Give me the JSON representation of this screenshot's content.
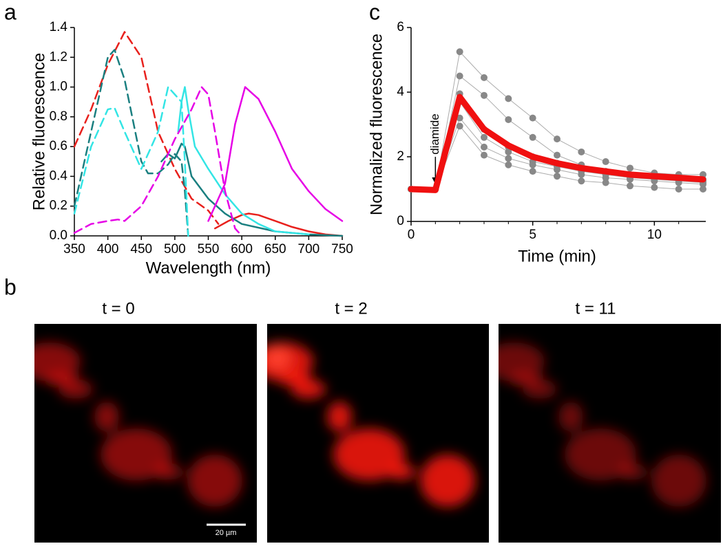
{
  "panels": [
    "a",
    "b",
    "c"
  ],
  "chart_data": [
    {
      "type": "line",
      "xlabel": "Wavelength (nm)",
      "ylabel": "Relative fluorescence",
      "xlim": [
        350,
        750
      ],
      "ylim": [
        0,
        1.4
      ],
      "xticks": [
        350,
        400,
        450,
        500,
        550,
        600,
        650,
        700,
        750
      ],
      "yticks": [
        {
          "value": 0,
          "label": "0.0"
        },
        0.2,
        0.4,
        0.6,
        0.8,
        {
          "value": 1,
          "label": "1.0"
        },
        1.2,
        1.4
      ],
      "series": [
        {
          "color": "#e8201c",
          "dashed": true,
          "x": [
            350,
            375,
            400,
            425,
            450,
            475,
            500,
            525,
            550,
            565
          ],
          "values": [
            0.6,
            0.85,
            1.15,
            1.37,
            1.2,
            0.7,
            0.45,
            0.25,
            0.17,
            0.08
          ]
        },
        {
          "color": "#e8201c",
          "dashed": false,
          "x": [
            560,
            580,
            600,
            610,
            625,
            650,
            675,
            700,
            725,
            750
          ],
          "values": [
            0.05,
            0.1,
            0.14,
            0.15,
            0.14,
            0.1,
            0.06,
            0.03,
            0.01,
            0
          ]
        },
        {
          "color": "#1a7f80",
          "dashed": true,
          "x": [
            350,
            375,
            400,
            410,
            425,
            450,
            460,
            475,
            490,
            500,
            510,
            515,
            520
          ],
          "values": [
            0.2,
            0.7,
            1.2,
            1.25,
            1.05,
            0.5,
            0.42,
            0.42,
            0.48,
            0.55,
            0.5,
            0.3,
            0
          ]
        },
        {
          "color": "#1a7f80",
          "dashed": false,
          "x": [
            480,
            490,
            500,
            510,
            515,
            525,
            550,
            575,
            600,
            650,
            700,
            750
          ],
          "values": [
            0.5,
            0.55,
            0.52,
            0.62,
            0.6,
            0.4,
            0.25,
            0.15,
            0.08,
            0.03,
            0.01,
            0
          ]
        },
        {
          "color": "#33e5e5",
          "dashed": true,
          "x": [
            350,
            375,
            400,
            410,
            425,
            450,
            475,
            490,
            500,
            510,
            515,
            520
          ],
          "values": [
            0.15,
            0.6,
            0.85,
            0.86,
            0.7,
            0.45,
            0.7,
            1.0,
            0.95,
            0.9,
            0.5,
            0
          ]
        },
        {
          "color": "#33e5e5",
          "dashed": false,
          "x": [
            505,
            510,
            515,
            520,
            530,
            550,
            575,
            600,
            625,
            650,
            700
          ],
          "values": [
            0.7,
            0.9,
            1.0,
            0.85,
            0.6,
            0.45,
            0.28,
            0.15,
            0.08,
            0.03,
            0.01
          ]
        },
        {
          "color": "#e600e6",
          "dashed": true,
          "x": [
            350,
            375,
            400,
            415,
            425,
            450,
            475,
            500,
            525,
            540,
            550,
            560,
            575,
            590,
            600
          ],
          "values": [
            0.02,
            0.08,
            0.1,
            0.11,
            0.1,
            0.2,
            0.4,
            0.65,
            0.85,
            1.0,
            0.95,
            0.7,
            0.3,
            0.05,
            0
          ]
        },
        {
          "color": "#e600e6",
          "dashed": false,
          "x": [
            550,
            575,
            590,
            605,
            625,
            650,
            675,
            700,
            725,
            750
          ],
          "values": [
            0.1,
            0.35,
            0.75,
            1.0,
            0.92,
            0.7,
            0.45,
            0.3,
            0.18,
            0.1
          ]
        }
      ]
    },
    {
      "type": "line",
      "xlabel": "Time (min)",
      "ylabel": "Normalized fluorescence",
      "annotation": "diamide",
      "xlim": [
        0,
        12
      ],
      "ylim": [
        0,
        6
      ],
      "xticks": [
        0,
        5,
        10
      ],
      "yticks": [
        0,
        2,
        4,
        6
      ],
      "x": [
        0,
        1,
        2,
        3,
        4,
        5,
        6,
        7,
        8,
        9,
        10,
        11,
        12
      ],
      "series": [
        {
          "color": "#888888",
          "markers": true,
          "values": [
            1,
            1,
            5.25,
            4.45,
            3.8,
            3.2,
            2.55,
            2.15,
            1.85,
            1.65,
            1.5,
            1.45,
            1.45
          ]
        },
        {
          "color": "#888888",
          "markers": true,
          "values": [
            1,
            1,
            4.5,
            3.9,
            3.15,
            2.6,
            2.05,
            1.75,
            1.55,
            1.45,
            1.35,
            1.3,
            1.3
          ]
        },
        {
          "color": "#888888",
          "markers": true,
          "values": [
            1,
            1,
            3.95,
            2.85,
            2.3,
            2.0,
            1.8,
            1.6,
            1.5,
            1.4,
            1.35,
            1.3,
            1.25
          ]
        },
        {
          "color": "#888888",
          "markers": true,
          "values": [
            1,
            1,
            3.7,
            2.6,
            2.15,
            1.85,
            1.7,
            1.55,
            1.45,
            1.35,
            1.3,
            1.25,
            1.2
          ]
        },
        {
          "color": "#888888",
          "markers": true,
          "values": [
            1,
            1,
            3.2,
            2.3,
            1.95,
            1.75,
            1.6,
            1.45,
            1.35,
            1.3,
            1.25,
            1.2,
            1.15
          ]
        },
        {
          "color": "#888888",
          "markers": true,
          "values": [
            1,
            1,
            2.95,
            2.05,
            1.75,
            1.55,
            1.4,
            1.25,
            1.2,
            1.1,
            1.05,
            1.0,
            1.0
          ]
        },
        {
          "color": "#f01010",
          "markers": false,
          "thick": true,
          "values": [
            1,
            0.97,
            3.85,
            2.85,
            2.35,
            2.0,
            1.8,
            1.65,
            1.55,
            1.45,
            1.4,
            1.35,
            1.3
          ]
        }
      ]
    }
  ],
  "images": {
    "labels": [
      "t = 0",
      "t = 2",
      "t = 11"
    ],
    "scale_bar": "20 µm"
  }
}
